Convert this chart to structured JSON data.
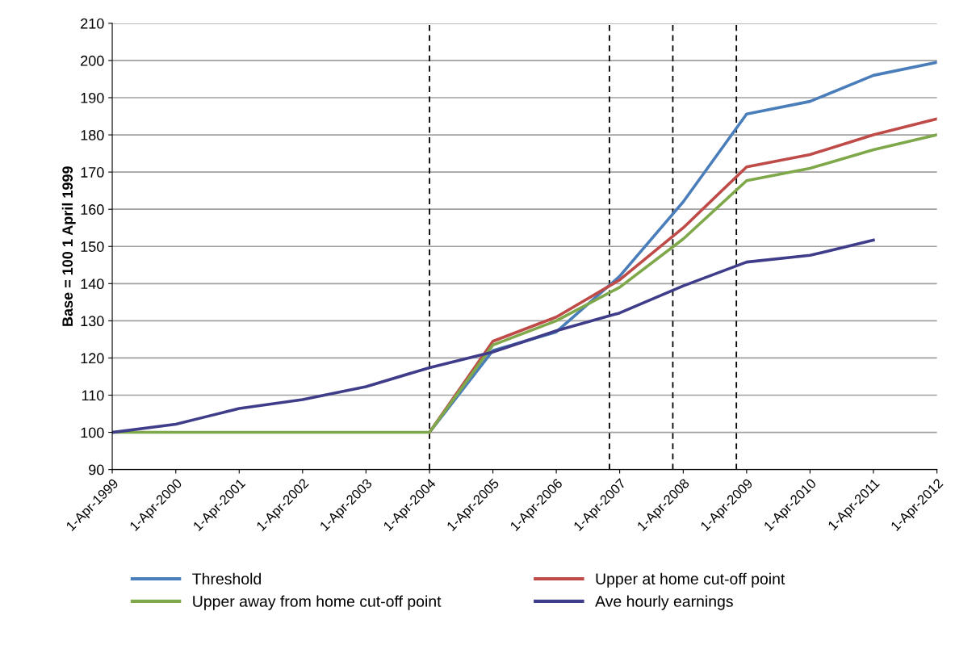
{
  "chart_data": {
    "type": "line",
    "ylabel": "Base = 100 1 April 1999",
    "x": [
      "1999-04-01",
      "2000-04-01",
      "2001-04-01",
      "2002-04-01",
      "2003-04-01",
      "2004-04-01",
      "2005-04-01",
      "2006-04-01",
      "2007-04-01",
      "2008-04-01",
      "2009-04-01",
      "2010-04-01",
      "2011-04-01",
      "2012-04-01"
    ],
    "series": [
      {
        "name": "Threshold",
        "color": "#4a7ebb",
        "values": [
          null,
          null,
          null,
          null,
          null,
          100,
          122,
          127,
          142,
          162,
          185.6,
          189,
          196,
          199.5
        ]
      },
      {
        "name": "Upper at home cut-off point",
        "color": "#be4b48",
        "values": [
          null,
          null,
          null,
          null,
          null,
          100,
          124.5,
          131,
          141,
          155,
          171.4,
          174.7,
          180,
          184.3
        ]
      },
      {
        "name": "Upper away from home cut-off point",
        "color": "#7ea84a",
        "values": [
          100,
          100,
          100,
          100,
          100,
          100,
          123.5,
          130,
          139,
          152,
          167.7,
          171,
          176,
          180
        ]
      },
      {
        "name": "Ave hourly earnings",
        "color": "#3f3d8a",
        "values": [
          100,
          102.2,
          106.4,
          108.8,
          112.3,
          117.4,
          121.6,
          127.3,
          132.1,
          139.4,
          145.8,
          147.6,
          151.7,
          null
        ]
      }
    ],
    "ref_lines": [
      {
        "axis": "x",
        "value": "2004-04-01",
        "color": "#000000",
        "line_style": "dashed"
      },
      {
        "axis": "x",
        "value": "2007-02-01",
        "color": "#000000",
        "line_style": "dashed"
      },
      {
        "axis": "x",
        "value": "2008-02-01",
        "color": "#000000",
        "line_style": "dashed"
      },
      {
        "axis": "x",
        "value": "2009-02-01",
        "color": "#000000",
        "line_style": "dashed"
      }
    ],
    "xlim": [
      "1999-04-01",
      "2012-04-01"
    ],
    "xticks": [
      {
        "value": "1999-04-01",
        "label": "1-Apr-1999"
      },
      {
        "value": "2000-04-01",
        "label": "1-Apr-2000"
      },
      {
        "value": "2001-04-01",
        "label": "1-Apr-2001"
      },
      {
        "value": "2002-04-01",
        "label": "1-Apr-2002"
      },
      {
        "value": "2003-04-01",
        "label": "1-Apr-2003"
      },
      {
        "value": "2004-04-01",
        "label": "1-Apr-2004"
      },
      {
        "value": "2005-04-01",
        "label": "1-Apr-2005"
      },
      {
        "value": "2006-04-01",
        "label": "1-Apr-2006"
      },
      {
        "value": "2007-04-01",
        "label": "1-Apr-2007"
      },
      {
        "value": "2008-04-01",
        "label": "1-Apr-2008"
      },
      {
        "value": "2009-04-01",
        "label": "1-Apr-2009"
      },
      {
        "value": "2010-04-01",
        "label": "1-Apr-2010"
      },
      {
        "value": "2011-04-01",
        "label": "1-Apr-2011"
      },
      {
        "value": "2012-04-01",
        "label": "1-Apr-2012"
      }
    ],
    "ylim": [
      90,
      210
    ],
    "yticks": [
      90,
      100,
      110,
      120,
      130,
      140,
      150,
      160,
      170,
      180,
      190,
      200,
      210
    ],
    "grid": "y",
    "legend": "bottom",
    "marker": "none",
    "line_style": "solid"
  }
}
